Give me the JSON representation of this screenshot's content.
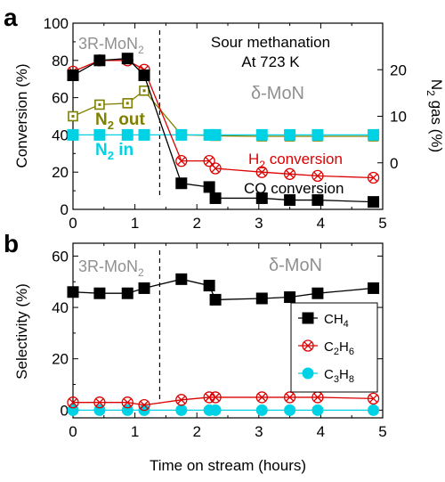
{
  "colors": {
    "co": "#000000",
    "h2": "#dd0000",
    "n2_out": "#7f7f00",
    "n2_in": "#00d2e6",
    "annotation_gray": "#909090",
    "axis": "#000000"
  },
  "chart_data": [
    {
      "panel": "a",
      "type": "line",
      "xlabel": "",
      "ylabel": "Conversion  (%)",
      "y2label": "N2 gas (%)",
      "xlim": [
        0,
        5
      ],
      "ylim": [
        0,
        100
      ],
      "y2lim": [
        -10,
        30
      ],
      "x_ticks": [
        0,
        1,
        2,
        3,
        4,
        5
      ],
      "y_ticks": [
        0,
        20,
        40,
        60,
        80,
        100
      ],
      "y2_ticks": [
        0,
        10,
        20
      ],
      "phase_change_x": 1.4,
      "annotations": {
        "phase_left": "3R-MoN",
        "phase_left_sub": "2",
        "title_line1": "Sour methanation",
        "title_line2": "At 723 K",
        "phase_right": "δ-MoN",
        "n2_out_main": "N",
        "n2_out_sub": "2",
        "n2_out_tail": " out",
        "n2_in_main": "N",
        "n2_in_sub": "2",
        "n2_in_tail": " in",
        "h2_main": "H",
        "h2_sub": "2",
        "h2_tail": " conversion",
        "co_label": "CO conversion"
      },
      "series": [
        {
          "key": "co",
          "marker": "square-filled",
          "axis": "left",
          "x": [
            0,
            0.43,
            0.88,
            1.15,
            1.75,
            2.2,
            2.3,
            3.05,
            3.5,
            3.95,
            4.85
          ],
          "y": [
            72,
            80,
            81,
            72,
            14,
            12,
            6,
            6,
            5,
            5,
            4
          ]
        },
        {
          "key": "h2",
          "marker": "circle-x",
          "axis": "left",
          "x": [
            0,
            0.43,
            0.88,
            1.15,
            1.75,
            2.2,
            2.3,
            3.05,
            3.5,
            3.95,
            4.85
          ],
          "y": [
            74,
            80,
            80,
            75,
            26,
            26,
            22,
            20,
            19,
            18,
            17
          ]
        },
        {
          "key": "n2_out",
          "marker": "square-dot",
          "axis": "right",
          "x": [
            0,
            0.43,
            0.88,
            1.15,
            1.75,
            2.2,
            2.3,
            3.05,
            3.5,
            3.95,
            4.85
          ],
          "y": [
            10,
            12.5,
            12.8,
            15.5,
            6,
            5.9,
            5.8,
            5.7,
            5.7,
            5.7,
            5.7
          ]
        },
        {
          "key": "n2_in",
          "marker": "square-filled",
          "axis": "right",
          "x": [
            0,
            0.43,
            0.88,
            1.15,
            1.75,
            2.2,
            2.3,
            3.05,
            3.5,
            3.95,
            4.85
          ],
          "y": [
            6,
            6,
            6,
            6,
            6,
            6,
            6,
            6,
            6,
            6,
            6
          ]
        }
      ]
    },
    {
      "panel": "b",
      "type": "line",
      "xlabel": "Time on stream (hours)",
      "ylabel": "Selectivity (%)",
      "xlim": [
        0,
        5
      ],
      "ylim": [
        -3,
        65
      ],
      "x_ticks": [
        0,
        1,
        2,
        3,
        4,
        5
      ],
      "y_ticks": [
        0,
        20,
        40,
        60
      ],
      "phase_change_x": 1.4,
      "annotations": {
        "phase_left": "3R-MoN",
        "phase_left_sub": "2",
        "phase_right": "δ-MoN"
      },
      "legend": {
        "placement": "right",
        "entries": [
          {
            "key": "ch4",
            "main": "CH",
            "sub": "4"
          },
          {
            "key": "c2h6",
            "main": "C",
            "sub": "2",
            "mid": "H",
            "sub2": "6"
          },
          {
            "key": "c3h8",
            "main": "C",
            "sub": "3",
            "mid": "H",
            "sub2": "8"
          }
        ]
      },
      "series": [
        {
          "key": "ch4",
          "marker": "square-filled",
          "x": [
            0,
            0.43,
            0.88,
            1.15,
            1.75,
            2.2,
            2.3,
            3.05,
            3.5,
            3.95,
            4.85
          ],
          "y": [
            46,
            45.5,
            45.5,
            47.5,
            51,
            48.5,
            43,
            43.5,
            44,
            45.5,
            47.5
          ]
        },
        {
          "key": "c2h6",
          "marker": "circle-x",
          "x": [
            0,
            0.43,
            0.88,
            1.15,
            1.75,
            2.2,
            2.3,
            3.05,
            3.5,
            3.95,
            4.85
          ],
          "y": [
            3,
            3,
            3,
            2,
            4,
            5,
            5,
            5,
            5,
            5,
            4.5
          ]
        },
        {
          "key": "c3h8",
          "marker": "circle-filled",
          "x": [
            0,
            0.43,
            0.88,
            1.15,
            1.75,
            2.2,
            2.3,
            3.05,
            3.5,
            3.95,
            4.85
          ],
          "y": [
            0,
            0,
            0,
            0,
            0,
            0,
            0,
            0,
            0,
            0,
            0
          ]
        }
      ]
    }
  ],
  "panel_labels": [
    "a",
    "b"
  ]
}
